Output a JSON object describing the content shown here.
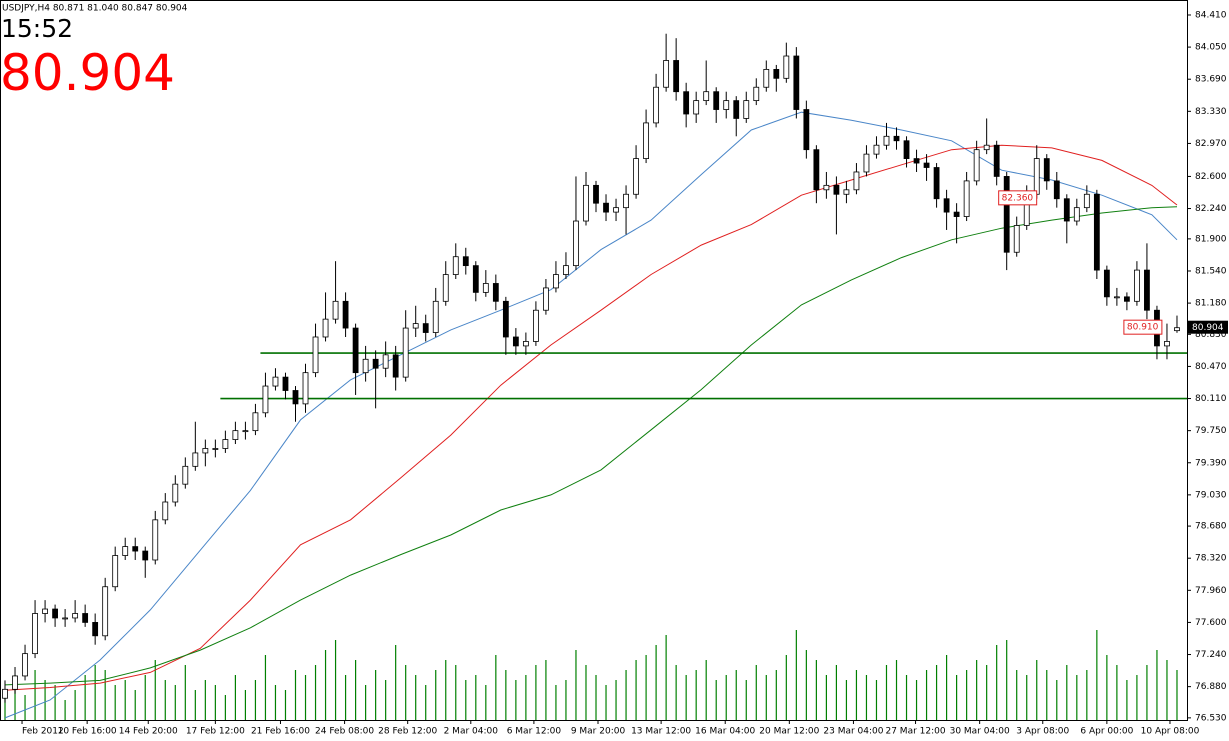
{
  "chart_data": {
    "type": "candlestick",
    "header": "USDJPY,H4  80.871 81.040 80.847 80.904",
    "time": "15:52",
    "last_price": {
      "value": 80.904,
      "label": "80.904"
    },
    "up_color": "#ffffff",
    "down_color": "#000000",
    "candles": [
      [
        76.75,
        76.95,
        76.7,
        76.85
      ],
      [
        76.85,
        77.1,
        76.8,
        77.0
      ],
      [
        77.0,
        77.35,
        76.95,
        77.25
      ],
      [
        77.25,
        77.85,
        77.2,
        77.7
      ],
      [
        77.7,
        77.85,
        77.6,
        77.75
      ],
      [
        77.75,
        77.8,
        77.55,
        77.65
      ],
      [
        77.65,
        77.75,
        77.55,
        77.65
      ],
      [
        77.65,
        77.85,
        77.6,
        77.7
      ],
      [
        77.7,
        77.8,
        77.55,
        77.6
      ],
      [
        77.6,
        77.7,
        77.35,
        77.45
      ],
      [
        77.45,
        78.1,
        77.4,
        78.0
      ],
      [
        78.0,
        78.45,
        77.95,
        78.35
      ],
      [
        78.35,
        78.55,
        78.3,
        78.45
      ],
      [
        78.45,
        78.55,
        78.3,
        78.4
      ],
      [
        78.4,
        78.45,
        78.1,
        78.3
      ],
      [
        78.3,
        78.85,
        78.25,
        78.75
      ],
      [
        78.75,
        79.05,
        78.7,
        78.95
      ],
      [
        78.95,
        79.25,
        78.9,
        79.15
      ],
      [
        79.15,
        79.45,
        79.1,
        79.35
      ],
      [
        79.35,
        79.85,
        79.3,
        79.5
      ],
      [
        79.5,
        79.65,
        79.35,
        79.55
      ],
      [
        79.55,
        79.65,
        79.45,
        79.55
      ],
      [
        79.55,
        79.75,
        79.5,
        79.65
      ],
      [
        79.65,
        79.85,
        79.6,
        79.75
      ],
      [
        79.75,
        79.85,
        79.65,
        79.75
      ],
      [
        79.75,
        80.05,
        79.7,
        79.95
      ],
      [
        79.95,
        80.4,
        79.9,
        80.25
      ],
      [
        80.25,
        80.45,
        80.2,
        80.35
      ],
      [
        80.35,
        80.4,
        80.1,
        80.2
      ],
      [
        80.2,
        80.25,
        79.85,
        80.05
      ],
      [
        80.05,
        80.5,
        79.95,
        80.4
      ],
      [
        80.4,
        80.95,
        80.35,
        80.8
      ],
      [
        80.8,
        81.3,
        80.75,
        81.0
      ],
      [
        81.0,
        81.65,
        80.95,
        81.2
      ],
      [
        81.2,
        81.3,
        80.8,
        80.9
      ],
      [
        80.9,
        80.95,
        80.15,
        80.4
      ],
      [
        80.4,
        80.7,
        80.3,
        80.55
      ],
      [
        80.55,
        80.65,
        80.0,
        80.45
      ],
      [
        80.45,
        80.75,
        80.35,
        80.6
      ],
      [
        80.6,
        80.7,
        80.2,
        80.35
      ],
      [
        80.35,
        81.1,
        80.3,
        80.9
      ],
      [
        80.9,
        81.15,
        80.8,
        80.95
      ],
      [
        80.95,
        81.05,
        80.75,
        80.85
      ],
      [
        80.85,
        81.35,
        80.8,
        81.2
      ],
      [
        81.2,
        81.65,
        81.15,
        81.5
      ],
      [
        81.5,
        81.85,
        81.45,
        81.7
      ],
      [
        81.7,
        81.8,
        81.5,
        81.6
      ],
      [
        81.6,
        81.65,
        81.2,
        81.3
      ],
      [
        81.3,
        81.55,
        81.25,
        81.4
      ],
      [
        81.4,
        81.5,
        81.1,
        81.2
      ],
      [
        81.2,
        81.25,
        80.6,
        80.8
      ],
      [
        80.8,
        80.9,
        80.6,
        80.7
      ],
      [
        80.7,
        80.85,
        80.6,
        80.75
      ],
      [
        80.75,
        81.2,
        80.7,
        81.1
      ],
      [
        81.1,
        81.45,
        81.05,
        81.35
      ],
      [
        81.35,
        81.65,
        81.3,
        81.5
      ],
      [
        81.5,
        81.75,
        81.45,
        81.6
      ],
      [
        81.6,
        82.6,
        81.55,
        82.1
      ],
      [
        82.1,
        82.65,
        82.05,
        82.5
      ],
      [
        82.5,
        82.55,
        82.2,
        82.3
      ],
      [
        82.3,
        82.4,
        82.1,
        82.2
      ],
      [
        82.2,
        82.35,
        82.1,
        82.25
      ],
      [
        82.25,
        82.5,
        81.95,
        82.4
      ],
      [
        82.4,
        82.95,
        82.35,
        82.8
      ],
      [
        82.8,
        83.35,
        82.75,
        83.2
      ],
      [
        83.2,
        83.75,
        83.15,
        83.6
      ],
      [
        83.6,
        84.2,
        83.55,
        83.9
      ],
      [
        83.9,
        84.15,
        83.45,
        83.55
      ],
      [
        83.55,
        83.65,
        83.15,
        83.3
      ],
      [
        83.3,
        83.55,
        83.2,
        83.45
      ],
      [
        83.45,
        83.9,
        83.4,
        83.55
      ],
      [
        83.55,
        83.6,
        83.2,
        83.35
      ],
      [
        83.35,
        83.55,
        83.25,
        83.45
      ],
      [
        83.45,
        83.5,
        83.05,
        83.25
      ],
      [
        83.25,
        83.55,
        83.2,
        83.45
      ],
      [
        83.45,
        83.7,
        83.4,
        83.6
      ],
      [
        83.6,
        83.9,
        83.55,
        83.8
      ],
      [
        83.8,
        83.85,
        83.55,
        83.7
      ],
      [
        83.7,
        84.1,
        83.65,
        83.95
      ],
      [
        83.95,
        84.05,
        83.25,
        83.35
      ],
      [
        83.35,
        83.45,
        82.8,
        82.9
      ],
      [
        82.9,
        82.95,
        82.3,
        82.45
      ],
      [
        82.45,
        82.65,
        82.35,
        82.5
      ],
      [
        82.5,
        82.6,
        81.95,
        82.4
      ],
      [
        82.4,
        82.55,
        82.3,
        82.45
      ],
      [
        82.45,
        82.75,
        82.4,
        82.65
      ],
      [
        82.65,
        82.95,
        82.6,
        82.85
      ],
      [
        82.85,
        83.05,
        82.8,
        82.95
      ],
      [
        82.95,
        83.2,
        82.9,
        83.05
      ],
      [
        83.05,
        83.15,
        82.9,
        83.0
      ],
      [
        83.0,
        83.05,
        82.7,
        82.8
      ],
      [
        82.8,
        82.9,
        82.65,
        82.75
      ],
      [
        82.75,
        82.85,
        82.55,
        82.7
      ],
      [
        82.7,
        82.75,
        82.25,
        82.35
      ],
      [
        82.35,
        82.45,
        82.0,
        82.2
      ],
      [
        82.2,
        82.3,
        81.85,
        82.15
      ],
      [
        82.15,
        82.65,
        82.1,
        82.55
      ],
      [
        82.55,
        83.0,
        82.5,
        82.9
      ],
      [
        82.9,
        83.25,
        82.85,
        82.95
      ],
      [
        82.95,
        83.0,
        82.5,
        82.6
      ],
      [
        82.6,
        82.65,
        81.55,
        81.75
      ],
      [
        81.75,
        82.15,
        81.7,
        82.05
      ],
      [
        82.05,
        82.5,
        82.0,
        82.4
      ],
      [
        82.4,
        82.95,
        82.35,
        82.8
      ],
      [
        82.8,
        82.85,
        82.45,
        82.55
      ],
      [
        82.55,
        82.65,
        82.25,
        82.35
      ],
      [
        82.35,
        82.4,
        81.85,
        82.1
      ],
      [
        82.1,
        82.35,
        82.05,
        82.25
      ],
      [
        82.25,
        82.5,
        82.2,
        82.4
      ],
      [
        82.4,
        82.45,
        81.45,
        81.55
      ],
      [
        81.55,
        81.6,
        81.15,
        81.25
      ],
      [
        81.25,
        81.35,
        81.15,
        81.25
      ],
      [
        81.25,
        81.3,
        81.1,
        81.2
      ],
      [
        81.2,
        81.65,
        81.15,
        81.55
      ],
      [
        81.55,
        81.85,
        81.0,
        81.1
      ],
      [
        81.1,
        81.15,
        80.55,
        80.7
      ],
      [
        80.7,
        80.95,
        80.55,
        80.75
      ],
      [
        80.871,
        81.04,
        80.847,
        80.904
      ]
    ],
    "volume_color": "#008000",
    "volume_lim": [
      0,
      100
    ],
    "volume": [
      30,
      45,
      25,
      50,
      40,
      35,
      20,
      30,
      45,
      55,
      50,
      35,
      40,
      30,
      45,
      60,
      40,
      35,
      55,
      30,
      40,
      35,
      25,
      45,
      30,
      40,
      65,
      35,
      30,
      50,
      45,
      55,
      70,
      80,
      45,
      60,
      35,
      50,
      40,
      75,
      55,
      45,
      35,
      50,
      60,
      55,
      40,
      45,
      35,
      65,
      50,
      40,
      45,
      55,
      60,
      35,
      40,
      70,
      55,
      45,
      35,
      40,
      50,
      60,
      65,
      75,
      85,
      55,
      45,
      50,
      60,
      40,
      45,
      50,
      40,
      55,
      45,
      50,
      65,
      90,
      70,
      60,
      45,
      55,
      40,
      50,
      45,
      40,
      55,
      60,
      45,
      40,
      50,
      55,
      65,
      45,
      50,
      60,
      55,
      75,
      80,
      50,
      45,
      60,
      50,
      40,
      55,
      45,
      50,
      90,
      65,
      55,
      40,
      45,
      55,
      70,
      60,
      50
    ],
    "ma_x": [
      0,
      4.5,
      9.5,
      14.5,
      19.5,
      24.5,
      29.5,
      34.5,
      39.5,
      44.5,
      49.5,
      54.5,
      59.5,
      64.5,
      69.5,
      74.5,
      79.5,
      84.5,
      89.5,
      94.5,
      99.5,
      104.5,
      109.5,
      114.5,
      117
    ],
    "ma": [
      {
        "color": "#4a86c8",
        "values": [
          76.53,
          76.73,
          77.18,
          77.74,
          78.41,
          79.08,
          79.87,
          80.32,
          80.6,
          80.88,
          81.1,
          81.33,
          81.78,
          82.11,
          82.62,
          83.12,
          83.32,
          83.23,
          83.12,
          83.0,
          82.67,
          82.56,
          82.39,
          82.17,
          81.89
        ]
      },
      {
        "color": "#e02020",
        "values": [
          76.84,
          76.87,
          76.92,
          77.04,
          77.31,
          77.85,
          78.47,
          78.75,
          79.22,
          79.7,
          80.26,
          80.71,
          81.1,
          81.5,
          81.83,
          82.06,
          82.39,
          82.56,
          82.73,
          82.9,
          82.95,
          82.92,
          82.78,
          82.5,
          82.28
        ]
      },
      {
        "color": "#108010",
        "values": [
          76.9,
          76.92,
          76.95,
          77.09,
          77.29,
          77.54,
          77.85,
          78.13,
          78.36,
          78.58,
          78.86,
          79.03,
          79.31,
          79.76,
          80.21,
          80.71,
          81.16,
          81.44,
          81.69,
          81.89,
          82.02,
          82.11,
          82.19,
          82.25,
          82.26
        ]
      }
    ],
    "hlines": [
      {
        "value": 80.62,
        "x_start": 25.5,
        "color": "#007000"
      },
      {
        "value": 80.11,
        "x_start": 21.5,
        "color": "#007000"
      }
    ],
    "annotations": [
      {
        "value": 82.36,
        "label": "82.360",
        "x": 99.2,
        "color": "#e02020"
      },
      {
        "value": 80.91,
        "label": "80.910",
        "x": 111.7,
        "color": "#e02020"
      }
    ],
    "xlim": [
      -0.5,
      118
    ],
    "xticks": [
      {
        "value": 1.7,
        "label": "Feb 2012"
      },
      {
        "value": 8.2,
        "label": "10 Feb 16:00"
      },
      {
        "value": 14.3,
        "label": "14 Feb 20:00"
      },
      {
        "value": 21,
        "label": "17 Feb 12:00"
      },
      {
        "value": 27.5,
        "label": "21 Feb 16:00"
      },
      {
        "value": 33.9,
        "label": "24 Feb 08:00"
      },
      {
        "value": 40.2,
        "label": "28 Feb 12:00"
      },
      {
        "value": 46.5,
        "label": "2 Mar 04:00"
      },
      {
        "value": 52.8,
        "label": "6 Mar 12:00"
      },
      {
        "value": 59.2,
        "label": "9 Mar 20:00"
      },
      {
        "value": 65.5,
        "label": "13 Mar 12:00"
      },
      {
        "value": 71.9,
        "label": "16 Mar 04:00"
      },
      {
        "value": 78.3,
        "label": "20 Mar 12:00"
      },
      {
        "value": 84.7,
        "label": "23 Mar 04:00"
      },
      {
        "value": 90.9,
        "label": "27 Mar 12:00"
      },
      {
        "value": 97.3,
        "label": "30 Mar 04:00"
      },
      {
        "value": 103.6,
        "label": "3 Apr 08:00"
      },
      {
        "value": 110,
        "label": "6 Apr 00:00"
      },
      {
        "value": 116.3,
        "label": "10 Apr 08:00"
      }
    ],
    "ylim": [
      76.506,
      84.578
    ],
    "yticks": [
      {
        "value": 84.41,
        "label": "84.410"
      },
      {
        "value": 84.05,
        "label": "84.050"
      },
      {
        "value": 83.69,
        "label": "83.690"
      },
      {
        "value": 83.33,
        "label": "83.330"
      },
      {
        "value": 82.97,
        "label": "82.970"
      },
      {
        "value": 82.6,
        "label": "82.600"
      },
      {
        "value": 82.24,
        "label": "82.240"
      },
      {
        "value": 81.9,
        "label": "81.900"
      },
      {
        "value": 81.54,
        "label": "81.540"
      },
      {
        "value": 81.18,
        "label": "81.180"
      },
      {
        "value": 80.83,
        "label": "80.830"
      },
      {
        "value": 80.47,
        "label": "80.470"
      },
      {
        "value": 80.11,
        "label": "80.110"
      },
      {
        "value": 79.75,
        "label": "79.750"
      },
      {
        "value": 79.39,
        "label": "79.390"
      },
      {
        "value": 79.03,
        "label": "79.030"
      },
      {
        "value": 78.68,
        "label": "78.680"
      },
      {
        "value": 78.32,
        "label": "78.320"
      },
      {
        "value": 77.96,
        "label": "77.960"
      },
      {
        "value": 77.6,
        "label": "77.600"
      },
      {
        "value": 77.24,
        "label": "77.240"
      },
      {
        "value": 76.88,
        "label": "76.880"
      },
      {
        "value": 76.53,
        "label": "76.530"
      }
    ]
  }
}
